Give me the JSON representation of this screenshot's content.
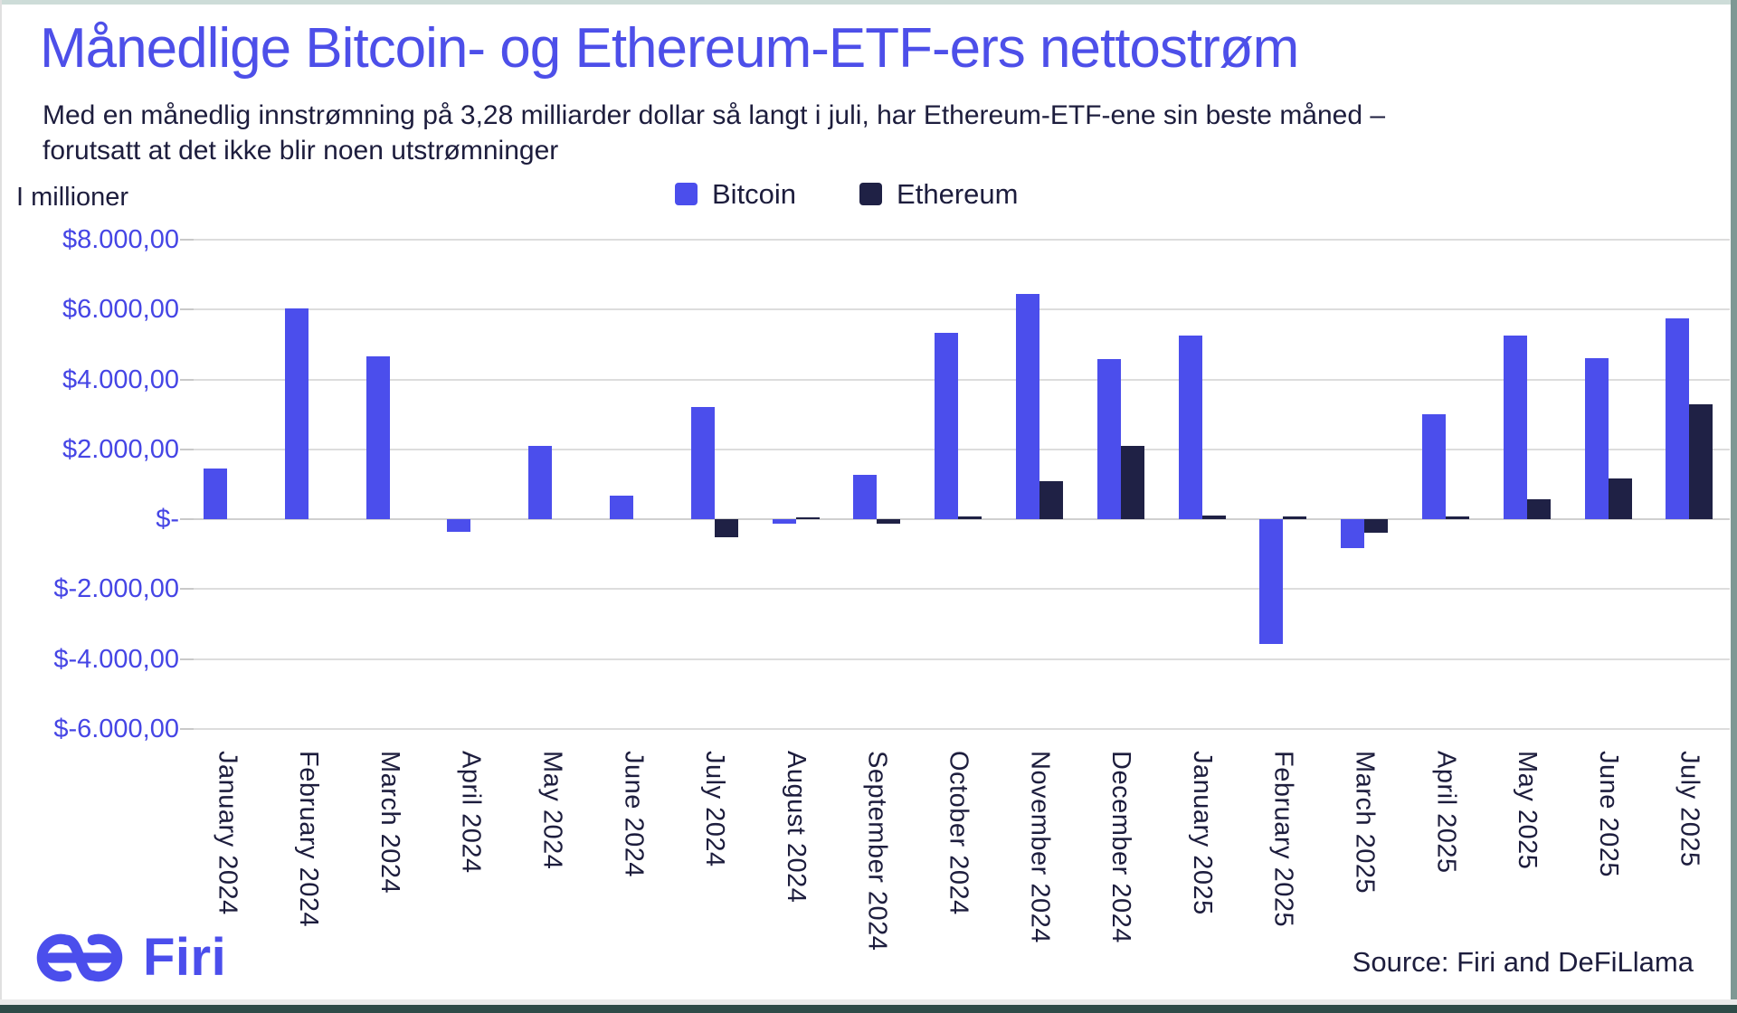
{
  "header": {
    "title": "Månedlige Bitcoin- og Ethereum-ETF-ers nettostrøm",
    "subtitle_line1": "Med en månedlig innstrømning på 3,28 milliarder dollar så langt i juli, har Ethereum-ETF-ene sin beste måned –",
    "subtitle_line2": "forutsatt at det ikke blir noen utstrømninger"
  },
  "chart_data": {
    "type": "bar",
    "title": "Månedlige Bitcoin- og Ethereum-ETF-ers nettostrøm",
    "ylabel": "I millioner",
    "xlabel": "",
    "ylim": [
      -6000,
      8000
    ],
    "grid": true,
    "legend_position": "top-center",
    "y_tick_labels": [
      "$8.000,00",
      "$6.000,00",
      "$4.000,00",
      "$2.000,00",
      "$-",
      "$-2.000,00",
      "$-4.000,00",
      "$-6.000,00"
    ],
    "y_tick_values": [
      8000,
      6000,
      4000,
      2000,
      0,
      -2000,
      -4000,
      -6000
    ],
    "categories": [
      "January 2024",
      "February 2024",
      "March 2024",
      "April 2024",
      "May 2024",
      "June 2024",
      "July 2024",
      "August 2024",
      "September 2024",
      "October 2024",
      "November 2024",
      "December 2024",
      "January 2025",
      "February 2025",
      "March 2025",
      "April 2025",
      "May 2025",
      "June 2025",
      "July 2025"
    ],
    "series": [
      {
        "name": "Bitcoin",
        "color": "#4b4eec",
        "values": [
          1450,
          6030,
          4650,
          -350,
          2100,
          670,
          3200,
          -130,
          1270,
          5330,
          6450,
          4590,
          5250,
          -3560,
          -830,
          3000,
          5250,
          4600,
          5750
        ]
      },
      {
        "name": "Ethereum",
        "color": "#1f2145",
        "values": [
          null,
          null,
          null,
          null,
          null,
          null,
          -520,
          60,
          -120,
          65,
          1090,
          2100,
          100,
          75,
          -400,
          65,
          560,
          1160,
          3280
        ]
      }
    ]
  },
  "colors": {
    "title": "#4d4fe9",
    "body_text": "#1d1d3d",
    "axis_labels": "#4545e5",
    "gridline": "#dddddd",
    "bitcoin": "#4b4eec",
    "ethereum": "#1f2145",
    "frame_bottom": "#2e4b48",
    "frame_top": "#cddcd8"
  },
  "footer": {
    "logo_text": "Firi",
    "source": "Source: Firi and DeFiLlama"
  }
}
